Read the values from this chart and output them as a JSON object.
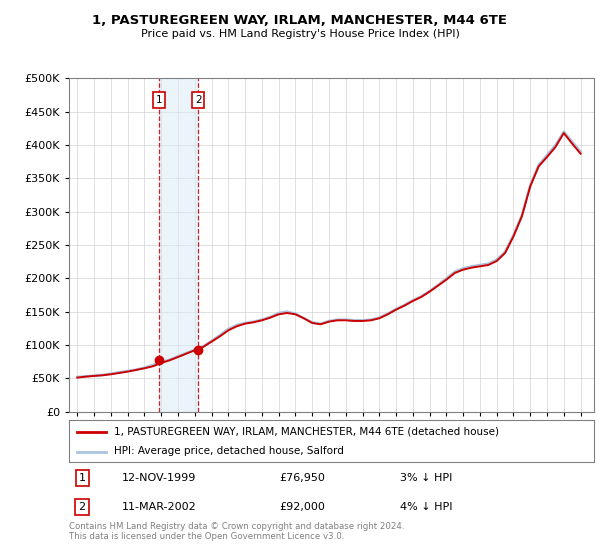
{
  "title": "1, PASTUREGREEN WAY, IRLAM, MANCHESTER, M44 6TE",
  "subtitle": "Price paid vs. HM Land Registry's House Price Index (HPI)",
  "legend_line1": "1, PASTUREGREEN WAY, IRLAM, MANCHESTER, M44 6TE (detached house)",
  "legend_line2": "HPI: Average price, detached house, Salford",
  "footer": "Contains HM Land Registry data © Crown copyright and database right 2024.\nThis data is licensed under the Open Government Licence v3.0.",
  "transaction1_date": "12-NOV-1999",
  "transaction1_price": "£76,950",
  "transaction1_hpi": "3% ↓ HPI",
  "transaction2_date": "11-MAR-2002",
  "transaction2_price": "£92,000",
  "transaction2_hpi": "4% ↓ HPI",
  "hpi_color": "#aac4e0",
  "price_color": "#cc0000",
  "marker_color": "#cc0000",
  "ylim": [
    0,
    500000
  ],
  "yticks": [
    0,
    50000,
    100000,
    150000,
    200000,
    250000,
    300000,
    350000,
    400000,
    450000,
    500000
  ],
  "hpi_years": [
    1995.0,
    1995.5,
    1996.0,
    1996.5,
    1997.0,
    1997.5,
    1998.0,
    1998.5,
    1999.0,
    1999.5,
    2000.0,
    2000.5,
    2001.0,
    2001.5,
    2002.0,
    2002.5,
    2003.0,
    2003.5,
    2004.0,
    2004.5,
    2005.0,
    2005.5,
    2006.0,
    2006.5,
    2007.0,
    2007.5,
    2008.0,
    2008.5,
    2009.0,
    2009.5,
    2010.0,
    2010.5,
    2011.0,
    2011.5,
    2012.0,
    2012.5,
    2013.0,
    2013.5,
    2014.0,
    2014.5,
    2015.0,
    2015.5,
    2016.0,
    2016.5,
    2017.0,
    2017.5,
    2018.0,
    2018.5,
    2019.0,
    2019.5,
    2020.0,
    2020.5,
    2021.0,
    2021.5,
    2022.0,
    2022.5,
    2023.0,
    2023.5,
    2024.0,
    2024.5,
    2025.0
  ],
  "hpi_values": [
    52000,
    53000,
    54000,
    55000,
    57000,
    59000,
    61000,
    63000,
    66000,
    70000,
    74000,
    78000,
    83000,
    88000,
    93000,
    98000,
    106000,
    115000,
    124000,
    130000,
    133000,
    135000,
    138000,
    142000,
    148000,
    150000,
    147000,
    140000,
    134000,
    132000,
    136000,
    138000,
    138000,
    137000,
    137000,
    138000,
    141000,
    147000,
    154000,
    160000,
    167000,
    173000,
    181000,
    190000,
    200000,
    210000,
    215000,
    218000,
    220000,
    222000,
    228000,
    240000,
    265000,
    295000,
    340000,
    370000,
    385000,
    400000,
    420000,
    405000,
    390000
  ],
  "red_years": [
    1995.0,
    1995.5,
    1996.0,
    1996.5,
    1997.0,
    1997.5,
    1998.0,
    1998.5,
    1999.0,
    1999.5,
    2000.0,
    2000.5,
    2001.0,
    2001.5,
    2002.0,
    2002.5,
    2003.0,
    2003.5,
    2004.0,
    2004.5,
    2005.0,
    2005.5,
    2006.0,
    2006.5,
    2007.0,
    2007.5,
    2008.0,
    2008.5,
    2009.0,
    2009.5,
    2010.0,
    2010.5,
    2011.0,
    2011.5,
    2012.0,
    2012.5,
    2013.0,
    2013.5,
    2014.0,
    2014.5,
    2015.0,
    2015.5,
    2016.0,
    2016.5,
    2017.0,
    2017.5,
    2018.0,
    2018.5,
    2019.0,
    2019.5,
    2020.0,
    2020.5,
    2021.0,
    2021.5,
    2022.0,
    2022.5,
    2023.0,
    2023.5,
    2024.0,
    2024.5,
    2025.0
  ],
  "red_values": [
    51000,
    52500,
    53500,
    54500,
    56000,
    58000,
    60000,
    62500,
    65000,
    68000,
    73000,
    77000,
    82000,
    87000,
    92000,
    97000,
    105000,
    113000,
    122000,
    128000,
    132000,
    134000,
    137000,
    141000,
    146000,
    148000,
    146000,
    140000,
    133000,
    131000,
    135000,
    137000,
    137000,
    136000,
    136000,
    137000,
    140000,
    146000,
    153000,
    159000,
    166000,
    172000,
    180000,
    189000,
    198000,
    208000,
    213000,
    216000,
    218000,
    220000,
    226000,
    238000,
    263000,
    293000,
    338000,
    368000,
    382000,
    397000,
    418000,
    402000,
    387000
  ],
  "transaction1_x": 1999.87,
  "transaction1_y": 76950,
  "transaction2_x": 2002.2,
  "transaction2_y": 92000,
  "vline1_x": 1999.87,
  "vline2_x": 2002.2,
  "xlim": [
    1994.5,
    2025.8
  ],
  "xticks": [
    1995,
    1996,
    1997,
    1998,
    1999,
    2000,
    2001,
    2002,
    2003,
    2004,
    2005,
    2006,
    2007,
    2008,
    2009,
    2010,
    2011,
    2012,
    2013,
    2014,
    2015,
    2016,
    2017,
    2018,
    2019,
    2020,
    2021,
    2022,
    2023,
    2024,
    2025
  ]
}
